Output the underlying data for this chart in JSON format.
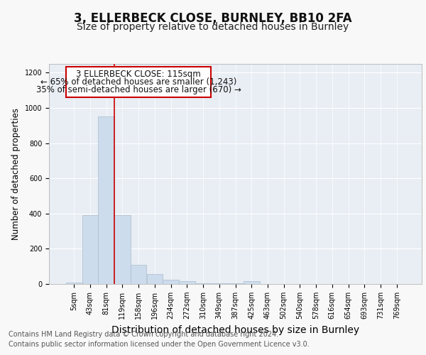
{
  "title": "3, ELLERBECK CLOSE, BURNLEY, BB10 2FA",
  "subtitle": "Size of property relative to detached houses in Burnley",
  "xlabel": "Distribution of detached houses by size in Burnley",
  "ylabel": "Number of detached properties",
  "categories": [
    "5sqm",
    "43sqm",
    "81sqm",
    "119sqm",
    "158sqm",
    "196sqm",
    "234sqm",
    "272sqm",
    "310sqm",
    "349sqm",
    "387sqm",
    "425sqm",
    "463sqm",
    "502sqm",
    "540sqm",
    "578sqm",
    "616sqm",
    "654sqm",
    "693sqm",
    "731sqm",
    "769sqm"
  ],
  "values": [
    10,
    390,
    950,
    390,
    110,
    55,
    25,
    15,
    5,
    5,
    5,
    15,
    0,
    0,
    0,
    0,
    0,
    0,
    0,
    0,
    0
  ],
  "bar_color": "#ccdcec",
  "bar_edge_color": "#aabccc",
  "vline_x_index": 2.5,
  "vline_color": "#cc0000",
  "annotation_line1": "3 ELLERBECK CLOSE: 115sqm",
  "annotation_line2": "← 65% of detached houses are smaller (1,243)",
  "annotation_line3": "35% of semi-detached houses are larger (670) →",
  "annotation_box_edge_color": "#cc0000",
  "annotation_box_facecolor": "#ffffff",
  "ylim": [
    0,
    1250
  ],
  "yticks": [
    0,
    200,
    400,
    600,
    800,
    1000,
    1200
  ],
  "footnote1": "Contains HM Land Registry data © Crown copyright and database right 2024.",
  "footnote2": "Contains public sector information licensed under the Open Government Licence v3.0.",
  "fig_bg_color": "#f8f8f8",
  "plot_bg_color": "#e8eef4",
  "grid_color": "#ffffff",
  "title_fontsize": 12,
  "subtitle_fontsize": 10,
  "xlabel_fontsize": 10,
  "ylabel_fontsize": 8.5,
  "tick_fontsize": 7,
  "annotation_fontsize": 8.5,
  "footnote_fontsize": 7
}
